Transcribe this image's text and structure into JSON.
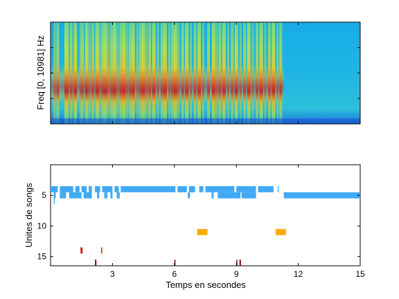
{
  "colors": {
    "background": "#ffffff",
    "axis": "#000000",
    "unit_light_blue": "#3fa9f5",
    "unit_cyan": "#33ccee",
    "unit_orange": "#ffaa00",
    "unit_red": "#dd1111",
    "unit_dark_red": "#8b0000"
  },
  "chart_data": [
    {
      "type": "heatmap",
      "title": "",
      "xlabel": "",
      "ylabel": "Freq [0, 10981] Hz",
      "xlim": [
        0,
        15
      ],
      "ylim": [
        0,
        10981
      ],
      "colormap": "jet",
      "x_ticks": [
        3,
        6,
        9,
        12,
        15
      ],
      "x_tick_labels_shown": false,
      "y_tick_labels_shown": false,
      "sound_end_s": 11.3,
      "bursts_s": [
        0.2,
        0.35,
        0.75,
        0.85,
        1.0,
        1.2,
        1.45,
        1.55,
        1.75,
        1.9,
        2.05,
        2.25,
        2.35,
        2.5,
        2.65,
        2.8,
        2.95,
        3.1,
        3.25,
        3.4,
        3.55,
        3.7,
        3.85,
        4.0,
        4.2,
        4.35,
        4.5,
        4.65,
        4.8,
        5.0,
        5.2,
        5.4,
        5.55,
        5.75,
        5.9,
        6.05,
        6.2,
        6.4,
        6.6,
        6.8,
        7.0,
        7.2,
        7.4,
        7.65,
        7.9,
        8.05,
        8.2,
        8.4,
        8.6,
        8.8,
        9.0,
        9.2,
        9.4,
        9.6,
        9.8,
        10.0,
        10.2,
        10.4,
        10.6,
        10.8,
        11.0,
        11.15
      ]
    },
    {
      "type": "scatter",
      "title": "",
      "xlabel": "Temps en secondes",
      "ylabel": "Unites de songs",
      "xlim": [
        0,
        15
      ],
      "ylim": [
        16.5,
        0
      ],
      "x_ticks": [
        3,
        6,
        9,
        12,
        15
      ],
      "x_tick_labels": [
        "3",
        "6",
        "9",
        "12",
        "15"
      ],
      "y_ticks": [
        5,
        10,
        15
      ],
      "y_tick_labels": [
        "5",
        "10",
        "15"
      ],
      "grid": false,
      "units": [
        {
          "unit": 4,
          "color_key": "unit_light_blue",
          "segments": [
            [
              0.0,
              0.35
            ],
            [
              0.45,
              1.1
            ],
            [
              1.2,
              1.4
            ],
            [
              1.5,
              1.75
            ],
            [
              1.85,
              2.0
            ],
            [
              2.15,
              2.4
            ],
            [
              2.5,
              3.0
            ],
            [
              3.1,
              3.3
            ],
            [
              3.4,
              6.05
            ],
            [
              6.15,
              6.6
            ],
            [
              6.7,
              7.0
            ],
            [
              7.2,
              7.4
            ],
            [
              7.5,
              8.9
            ],
            [
              9.0,
              9.95
            ],
            [
              10.05,
              10.8
            ],
            [
              11.0,
              11.05
            ]
          ]
        },
        {
          "unit": 5,
          "color_key": "unit_light_blue",
          "segments": [
            [
              0.15,
              0.25
            ],
            [
              0.45,
              0.75
            ],
            [
              0.9,
              1.5
            ],
            [
              1.6,
              2.0
            ],
            [
              2.25,
              2.35
            ],
            [
              2.6,
              2.75
            ],
            [
              2.9,
              3.0
            ],
            [
              3.2,
              3.35
            ],
            [
              6.65,
              6.75
            ],
            [
              7.8,
              7.9
            ],
            [
              8.1,
              9.2
            ],
            [
              9.25,
              9.95
            ],
            [
              11.3,
              15.0
            ]
          ]
        },
        {
          "unit": 6,
          "color_key": "unit_cyan",
          "segments": [
            [
              0.15,
              0.2
            ]
          ]
        },
        {
          "unit": 11,
          "color_key": "unit_orange",
          "segments": [
            [
              7.1,
              7.6
            ],
            [
              10.9,
              11.4
            ]
          ]
        },
        {
          "unit": 14,
          "color_key": "unit_red",
          "segments": [
            [
              1.45,
              1.55
            ],
            [
              2.45,
              2.5
            ]
          ]
        },
        {
          "unit": 16,
          "color_key": "unit_dark_red",
          "segments": [
            [
              2.15,
              2.22
            ],
            [
              6.0,
              6.05
            ],
            [
              9.0,
              9.05
            ],
            [
              9.15,
              9.22
            ]
          ]
        }
      ]
    }
  ]
}
